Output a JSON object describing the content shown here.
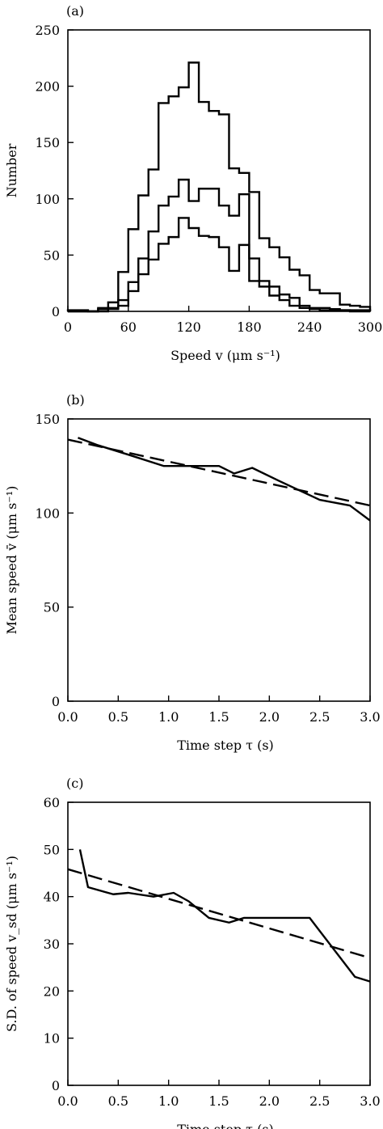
{
  "chart_data": [
    {
      "type": "histogram",
      "panel_label": "(a)",
      "xlabel": "Speed v (μm s⁻¹)",
      "ylabel": "Number",
      "xlim": [
        0,
        300
      ],
      "ylim": [
        0,
        250
      ],
      "xticks": [
        0,
        60,
        120,
        180,
        240,
        300
      ],
      "yticks": [
        0,
        50,
        100,
        150,
        200,
        250
      ],
      "bin_edges": [
        0,
        10,
        20,
        30,
        40,
        50,
        60,
        70,
        80,
        90,
        100,
        110,
        120,
        130,
        140,
        150,
        160,
        170,
        180,
        190,
        200,
        210,
        220,
        230,
        240,
        250,
        260,
        270,
        280,
        290,
        300
      ],
      "series": [
        {
          "values": [
            1,
            1,
            0,
            3,
            8,
            35,
            73,
            103,
            126,
            185,
            191,
            199,
            221,
            186,
            178,
            175,
            127,
            123,
            106,
            65,
            57,
            48,
            37,
            32,
            19,
            16,
            16,
            6,
            5,
            4
          ]
        },
        {
          "values": [
            0,
            0,
            0,
            2,
            3,
            10,
            26,
            47,
            71,
            94,
            102,
            117,
            98,
            109,
            109,
            94,
            85,
            104,
            47,
            27,
            22,
            15,
            12,
            5,
            3,
            3,
            2,
            1,
            1,
            1
          ]
        },
        {
          "values": [
            0,
            0,
            0,
            0,
            2,
            5,
            18,
            33,
            46,
            60,
            66,
            83,
            74,
            67,
            66,
            57,
            36,
            59,
            27,
            22,
            14,
            10,
            5,
            3,
            2,
            1,
            1,
            1,
            0,
            0
          ]
        }
      ]
    },
    {
      "type": "line",
      "panel_label": "(b)",
      "xlabel": "Time step τ (s)",
      "ylabel": "Mean speed v̄ (μm s⁻¹)",
      "xlim": [
        0,
        3.0
      ],
      "ylim": [
        0,
        150
      ],
      "xticks": [
        "0.0",
        "0.5",
        "1.0",
        "1.5",
        "2.0",
        "2.5",
        "3.0"
      ],
      "yticks": [
        0,
        50,
        100,
        150
      ],
      "series": [
        {
          "style": "solid",
          "x": [
            0.1,
            0.3,
            0.6,
            0.95,
            1.2,
            1.5,
            1.65,
            1.83,
            2.1,
            2.5,
            2.8,
            3.0
          ],
          "y": [
            140,
            136,
            131,
            125,
            125,
            125,
            121,
            124,
            117,
            107,
            104,
            96
          ]
        },
        {
          "style": "dashed",
          "x": [
            0.0,
            3.0
          ],
          "y": [
            139,
            104
          ]
        }
      ]
    },
    {
      "type": "line",
      "panel_label": "(c)",
      "xlabel": "Time step τ (s)",
      "ylabel": "S.D. of speed v_sd (μm s⁻¹)",
      "xlim": [
        0,
        3.0
      ],
      "ylim": [
        0,
        60
      ],
      "xticks": [
        "0.0",
        "0.5",
        "1.0",
        "1.5",
        "2.0",
        "2.5",
        "3.0"
      ],
      "yticks": [
        0,
        10,
        20,
        30,
        40,
        50,
        60
      ],
      "series": [
        {
          "style": "solid",
          "x": [
            0.12,
            0.2,
            0.45,
            0.6,
            0.85,
            1.05,
            1.2,
            1.4,
            1.6,
            1.75,
            2.0,
            2.4,
            2.85,
            3.0
          ],
          "y": [
            50,
            42,
            40.5,
            40.8,
            40,
            40.8,
            39,
            35.5,
            34.5,
            35.5,
            35.5,
            35.5,
            23,
            22
          ]
        },
        {
          "style": "dashed",
          "x": [
            0.0,
            3.0
          ],
          "y": [
            45.8,
            27
          ]
        }
      ]
    }
  ]
}
